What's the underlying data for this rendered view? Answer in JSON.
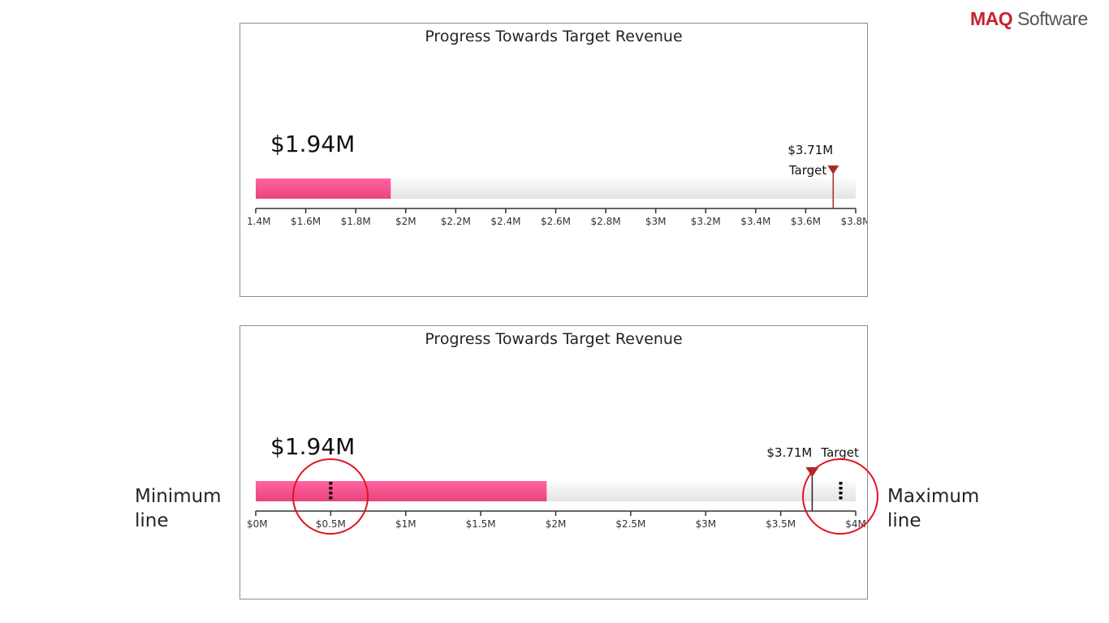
{
  "logo": {
    "part1": "MAQ",
    "part2": "Software"
  },
  "annotations": {
    "minimum": [
      "Minimum",
      "line"
    ],
    "maximum": [
      "Maximum",
      "line"
    ]
  },
  "colors": {
    "bar": "#f0508a",
    "track": "#e8e8e8",
    "target": "#a52a2a",
    "circle": "#e0141e"
  },
  "chart_data": [
    {
      "type": "bar",
      "title": "Progress Towards Target Revenue",
      "value": 1.94,
      "value_label": "$1.94M",
      "target": 3.71,
      "target_value_label": "$3.71M",
      "target_label": "Target",
      "xlim": [
        1.4,
        3.8
      ],
      "ticks": [
        1.4,
        1.6,
        1.8,
        2.0,
        2.2,
        2.4,
        2.6,
        2.8,
        3.0,
        3.2,
        3.4,
        3.6,
        3.8
      ],
      "tick_labels": [
        "1.4M",
        "$1.6M",
        "$1.8M",
        "$2M",
        "$2.2M",
        "$2.4M",
        "$2.6M",
        "$2.8M",
        "$3M",
        "$3.2M",
        "$3.4M",
        "$3.6M",
        "$3.8M"
      ]
    },
    {
      "type": "bar",
      "title": "Progress Towards Target Revenue",
      "value": 1.94,
      "value_label": "$1.94M",
      "target": 3.71,
      "target_value_label": "$3.71M",
      "target_label": "Target",
      "minimum_line": 0.5,
      "maximum_line": 3.9,
      "xlim": [
        0,
        4
      ],
      "ticks": [
        0,
        0.5,
        1,
        1.5,
        2,
        2.5,
        3,
        3.5,
        4
      ],
      "tick_labels": [
        "$0M",
        "$0.5M",
        "$1M",
        "$1.5M",
        "$2M",
        "$2.5M",
        "$3M",
        "$3.5M",
        "$4M"
      ]
    }
  ]
}
